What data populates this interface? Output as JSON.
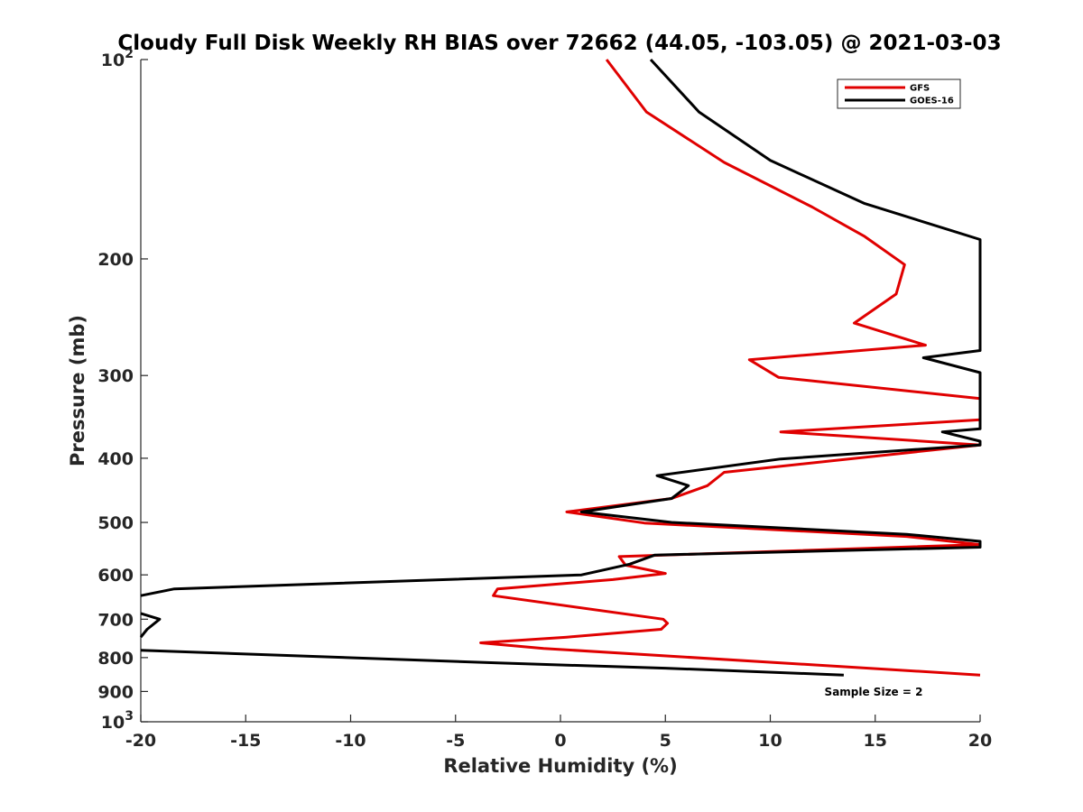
{
  "chart_data": {
    "type": "line",
    "title": "Cloudy Full Disk Weekly RH BIAS over 72662 (44.05, -103.05) @ 2021-03-03",
    "xlabel": "Relative Humidity (%)",
    "ylabel": "Pressure (mb)",
    "xlim": [
      -20,
      20
    ],
    "ylim": [
      100,
      1000
    ],
    "y_scale": "log",
    "y_reversed": true,
    "grid": false,
    "legend_position": "top-right",
    "x_ticks": [
      -20,
      -15,
      -10,
      -5,
      0,
      5,
      10,
      15,
      20
    ],
    "x_tick_labels": [
      "-20",
      "-15",
      "-10",
      "-5",
      "0",
      "5",
      "10",
      "15",
      "20"
    ],
    "y_ticks": [
      100,
      200,
      300,
      400,
      500,
      600,
      700,
      800,
      900,
      1000
    ],
    "y_tick_labels": [
      {
        "base": "10",
        "exp": "2"
      },
      {
        "base": "200",
        "exp": ""
      },
      {
        "base": "300",
        "exp": ""
      },
      {
        "base": "400",
        "exp": ""
      },
      {
        "base": "500",
        "exp": ""
      },
      {
        "base": "600",
        "exp": ""
      },
      {
        "base": "700",
        "exp": ""
      },
      {
        "base": "800",
        "exp": ""
      },
      {
        "base": "900",
        "exp": ""
      },
      {
        "base": "10",
        "exp": "3"
      }
    ],
    "series": [
      {
        "name": "GFS",
        "color": "#e00000",
        "points": [
          [
            2.2,
            100
          ],
          [
            4.1,
            120
          ],
          [
            7.8,
            143
          ],
          [
            12.0,
            167
          ],
          [
            14.5,
            185
          ],
          [
            16.4,
            204
          ],
          [
            16.0,
            226
          ],
          [
            14.0,
            250
          ],
          [
            17.4,
            270
          ],
          [
            9.0,
            284
          ],
          [
            10.4,
            302
          ],
          [
            20.0,
            325
          ],
          [
            20.0,
            350
          ],
          [
            10.5,
            365
          ],
          [
            20.0,
            382
          ],
          [
            7.8,
            420
          ],
          [
            7.0,
            440
          ],
          [
            5.3,
            460
          ],
          [
            0.3,
            482
          ],
          [
            4.0,
            501
          ],
          [
            16.5,
            525
          ],
          [
            20.0,
            540
          ],
          [
            2.8,
            563
          ],
          [
            3.1,
            580
          ],
          [
            5.0,
            597
          ],
          [
            2.5,
            610
          ],
          [
            -3.0,
            630
          ],
          [
            -3.2,
            645
          ],
          [
            4.9,
            700
          ],
          [
            5.1,
            710
          ],
          [
            4.8,
            725
          ],
          [
            0.3,
            745
          ],
          [
            -3.8,
            760
          ],
          [
            -0.8,
            775
          ],
          [
            20.0,
            850
          ]
        ]
      },
      {
        "name": "GOES-16",
        "color": "#000000",
        "points": [
          [
            4.3,
            100
          ],
          [
            6.6,
            120
          ],
          [
            10.0,
            142
          ],
          [
            14.5,
            165
          ],
          [
            20.0,
            187
          ],
          [
            20.0,
            275
          ],
          [
            17.3,
            282
          ],
          [
            20.0,
            297
          ],
          [
            20.0,
            361
          ],
          [
            18.2,
            365
          ],
          [
            20.0,
            377
          ],
          [
            20.0,
            382
          ],
          [
            10.5,
            401
          ],
          [
            4.6,
            425
          ],
          [
            6.1,
            440
          ],
          [
            5.3,
            460
          ],
          [
            1.0,
            482
          ],
          [
            5.3,
            500
          ],
          [
            16.5,
            521
          ],
          [
            20.0,
            534
          ],
          [
            20.0,
            545
          ],
          [
            4.5,
            560
          ],
          [
            3.3,
            578
          ],
          [
            1.0,
            600
          ],
          [
            -18.4,
            630
          ],
          [
            -20.0,
            645
          ]
        ]
      },
      {
        "name": "",
        "color": "#000000",
        "points": [
          [
            -20.0,
            686
          ],
          [
            -19.1,
            700
          ],
          [
            -19.7,
            725
          ],
          [
            -20.0,
            745
          ]
        ]
      },
      {
        "name": "",
        "color": "#000000",
        "points": [
          [
            -20.0,
            780
          ],
          [
            -3.0,
            815
          ],
          [
            5.0,
            830
          ],
          [
            13.5,
            850
          ]
        ]
      }
    ],
    "legend": [
      "GFS",
      "GOES-16"
    ],
    "annotation": "Sample Size = 2"
  }
}
